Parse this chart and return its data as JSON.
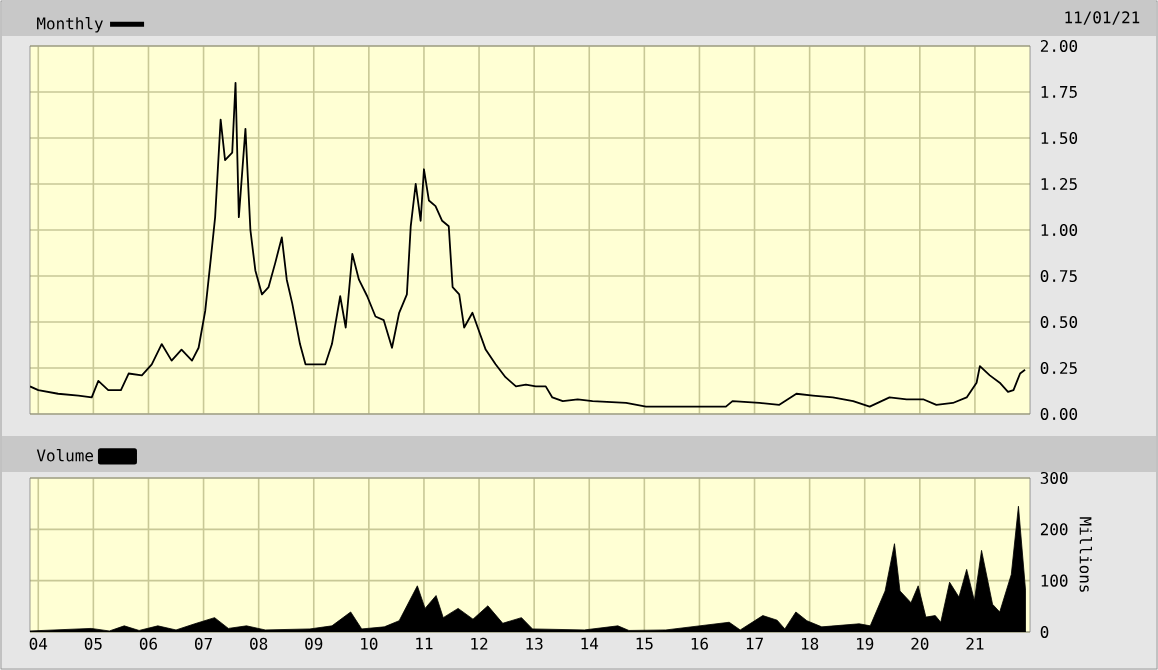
{
  "chart_data": [
    {
      "type": "line",
      "annotations": [
        "11/01/21"
      ],
      "legend": "top left",
      "grid": true,
      "tick_labels": "y",
      "xlim": [
        2003.85,
        2022
      ],
      "ylim": [
        0,
        2
      ],
      "xticks": [
        {
          "value": 2004,
          "label": null
        },
        {
          "value": 2005,
          "label": null
        },
        {
          "value": 2006,
          "label": null
        },
        {
          "value": 2007,
          "label": null
        },
        {
          "value": 2008,
          "label": null
        },
        {
          "value": 2009,
          "label": null
        },
        {
          "value": 2010,
          "label": null
        },
        {
          "value": 2011,
          "label": null
        },
        {
          "value": 2012,
          "label": null
        },
        {
          "value": 2013,
          "label": null
        },
        {
          "value": 2014,
          "label": null
        },
        {
          "value": 2015,
          "label": null
        },
        {
          "value": 2016,
          "label": null
        },
        {
          "value": 2017,
          "label": null
        },
        {
          "value": 2018,
          "label": null
        },
        {
          "value": 2019,
          "label": null
        },
        {
          "value": 2020,
          "label": null
        },
        {
          "value": 2021,
          "label": null
        }
      ],
      "yticks": [
        {
          "value": 0,
          "label": "0.00"
        },
        {
          "value": 0.25,
          "label": "0.25"
        },
        {
          "value": 0.5,
          "label": "0.50"
        },
        {
          "value": 0.75,
          "label": "0.75"
        },
        {
          "value": 1,
          "label": "1.00"
        },
        {
          "value": 1.25,
          "label": "1.25"
        },
        {
          "value": 1.5,
          "label": "1.50"
        },
        {
          "value": 1.75,
          "label": "1.75"
        },
        {
          "value": 2,
          "label": "2.00"
        }
      ],
      "x": [
        2003.85,
        2004.0,
        2004.36,
        2004.73,
        2004.97,
        2005.09,
        2005.27,
        2005.5,
        2005.64,
        2005.88,
        2006.06,
        2006.24,
        2006.42,
        2006.6,
        2006.79,
        2006.91,
        2007.03,
        2007.13,
        2007.21,
        2007.31,
        2007.39,
        2007.52,
        2007.58,
        2007.64,
        2007.76,
        2007.85,
        2007.94,
        2008.06,
        2008.18,
        2008.3,
        2008.42,
        2008.51,
        2008.61,
        2008.75,
        2008.85,
        2009.03,
        2009.21,
        2009.33,
        2009.48,
        2009.58,
        2009.7,
        2009.82,
        2009.97,
        2010.12,
        2010.27,
        2010.42,
        2010.55,
        2010.69,
        2010.76,
        2010.85,
        2010.94,
        2011.0,
        2011.09,
        2011.21,
        2011.33,
        2011.45,
        2011.52,
        2011.64,
        2011.73,
        2011.88,
        2012.0,
        2012.12,
        2012.3,
        2012.48,
        2012.67,
        2012.85,
        2013.03,
        2013.21,
        2013.33,
        2013.52,
        2013.79,
        2014.06,
        2014.67,
        2015.03,
        2015.88,
        2016.48,
        2016.6,
        2017.09,
        2017.45,
        2017.76,
        2018.06,
        2018.42,
        2018.79,
        2019.09,
        2019.45,
        2019.76,
        2020.06,
        2020.3,
        2020.6,
        2020.85,
        2021.03,
        2021.09,
        2021.27,
        2021.45,
        2021.6,
        2021.7,
        2021.82,
        2021.91
      ],
      "series": [
        {
          "name": "Monthly",
          "color": "#000000",
          "values": [
            0.15,
            0.13,
            0.11,
            0.1,
            0.09,
            0.18,
            0.13,
            0.13,
            0.22,
            0.21,
            0.27,
            0.38,
            0.29,
            0.35,
            0.29,
            0.36,
            0.56,
            0.84,
            1.07,
            1.6,
            1.38,
            1.42,
            1.8,
            1.07,
            1.55,
            1.0,
            0.78,
            0.65,
            0.69,
            0.82,
            0.96,
            0.73,
            0.6,
            0.38,
            0.27,
            0.27,
            0.27,
            0.38,
            0.64,
            0.47,
            0.87,
            0.73,
            0.64,
            0.53,
            0.51,
            0.36,
            0.55,
            0.65,
            1.02,
            1.25,
            1.05,
            1.33,
            1.16,
            1.13,
            1.05,
            1.02,
            0.69,
            0.65,
            0.47,
            0.55,
            0.45,
            0.35,
            0.27,
            0.2,
            0.15,
            0.16,
            0.15,
            0.15,
            0.09,
            0.07,
            0.08,
            0.07,
            0.06,
            0.04,
            0.04,
            0.04,
            0.07,
            0.06,
            0.05,
            0.11,
            0.1,
            0.09,
            0.07,
            0.04,
            0.09,
            0.08,
            0.08,
            0.05,
            0.06,
            0.09,
            0.17,
            0.26,
            0.21,
            0.17,
            0.12,
            0.13,
            0.22,
            0.24
          ]
        }
      ]
    },
    {
      "type": "area",
      "ylabel": "Millions",
      "legend": "top left",
      "grid": true,
      "xlim": [
        2003.85,
        2022
      ],
      "ylim": [
        0,
        300
      ],
      "xticks": [
        {
          "value": 2004,
          "label": "04"
        },
        {
          "value": 2005,
          "label": "05"
        },
        {
          "value": 2006,
          "label": "06"
        },
        {
          "value": 2007,
          "label": "07"
        },
        {
          "value": 2008,
          "label": "08"
        },
        {
          "value": 2009,
          "label": "09"
        },
        {
          "value": 2010,
          "label": "10"
        },
        {
          "value": 2011,
          "label": "11"
        },
        {
          "value": 2012,
          "label": "12"
        },
        {
          "value": 2013,
          "label": "13"
        },
        {
          "value": 2014,
          "label": "14"
        },
        {
          "value": 2015,
          "label": "15"
        },
        {
          "value": 2016,
          "label": "16"
        },
        {
          "value": 2017,
          "label": "17"
        },
        {
          "value": 2018,
          "label": "18"
        },
        {
          "value": 2019,
          "label": "19"
        },
        {
          "value": 2020,
          "label": "20"
        },
        {
          "value": 2021,
          "label": "21"
        }
      ],
      "yticks": [
        0,
        100,
        200,
        300
      ],
      "x": [
        2003.85,
        2004.96,
        2005.29,
        2005.56,
        2005.83,
        2006.17,
        2006.5,
        2006.84,
        2007.2,
        2007.45,
        2007.78,
        2008.12,
        2008.93,
        2009.33,
        2009.67,
        2009.87,
        2010.28,
        2010.55,
        2010.88,
        2011.02,
        2011.22,
        2011.35,
        2011.62,
        2011.89,
        2012.16,
        2012.43,
        2012.77,
        2012.97,
        2013.91,
        2014.52,
        2014.72,
        2015.39,
        2016.54,
        2016.74,
        2017.15,
        2017.41,
        2017.55,
        2017.75,
        2017.95,
        2018.22,
        2018.9,
        2019.1,
        2019.37,
        2019.54,
        2019.64,
        2019.84,
        2019.97,
        2020.11,
        2020.28,
        2020.38,
        2020.54,
        2020.71,
        2020.85,
        2020.99,
        2021.12,
        2021.32,
        2021.45,
        2021.66,
        2021.79,
        2021.92
      ],
      "series": [
        {
          "name": "Volume",
          "color": "#000000",
          "values": [
            2,
            7,
            2,
            12,
            3,
            12,
            4,
            16,
            28,
            7,
            12,
            4,
            6,
            12,
            39,
            6,
            10,
            22,
            90,
            46,
            71,
            28,
            46,
            25,
            51,
            17,
            28,
            6,
            4,
            12,
            3,
            4,
            19,
            4,
            32,
            23,
            6,
            39,
            22,
            10,
            16,
            12,
            80,
            172,
            80,
            57,
            90,
            29,
            32,
            19,
            97,
            68,
            122,
            61,
            159,
            54,
            39,
            112,
            245,
            80
          ]
        }
      ]
    }
  ]
}
